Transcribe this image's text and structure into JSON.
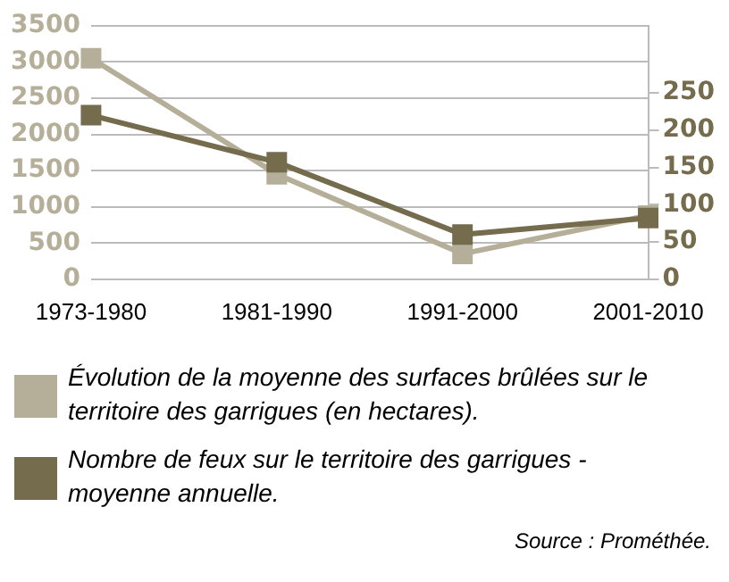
{
  "chart_data": {
    "type": "line",
    "categories": [
      "1973-1980",
      "1981-1990",
      "1991-2000",
      "2001-2010"
    ],
    "series": [
      {
        "name": "Évolution de la moyenne des surfaces brûlées sur le territoire des garrigues (en hectares).",
        "color": "#b5ae98",
        "values": [
          3050,
          1450,
          350,
          880
        ]
      },
      {
        "name": "Nombre de feux sur le territoire des garrigues - moyenne annuelle.",
        "color": "#756b4d",
        "values": [
          220,
          157,
          60,
          82
        ],
        "axis": "y2"
      }
    ],
    "ylim": [
      0,
      3500
    ],
    "yticks": [
      0,
      500,
      1000,
      1500,
      2000,
      2500,
      3000,
      3500
    ],
    "y2lim": [
      0,
      340
    ],
    "y2ticks": [
      0,
      50,
      100,
      150,
      200,
      250
    ],
    "grid": "y",
    "legend": "bottom",
    "marker": "square",
    "line_style": "solid",
    "annotations": [
      "Source : Prométhée."
    ]
  }
}
